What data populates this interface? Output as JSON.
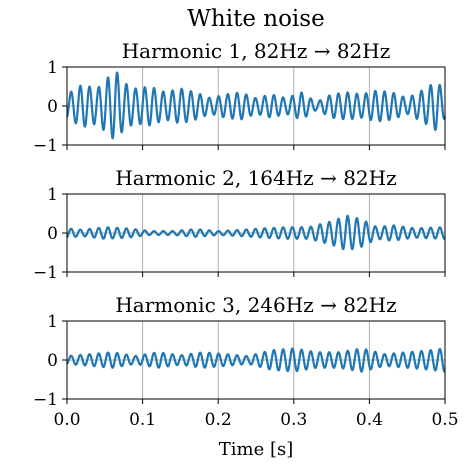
{
  "chart_data": {
    "type": "line",
    "title": "White noise",
    "xlabel": "Time [s]",
    "xlim": [
      0.0,
      0.5
    ],
    "xticks": [
      "0.0",
      "0.1",
      "0.2",
      "0.3",
      "0.4",
      "0.5"
    ],
    "grid": true,
    "line_color": "#1f77b4",
    "panels": [
      {
        "title": "Harmonic 1, 82Hz → 82Hz",
        "ylim": [
          -1,
          1
        ],
        "yticks": [
          "−1",
          "0",
          "1"
        ],
        "frequency_hz": 82,
        "envelope": {
          "t": [
            0.0,
            0.02,
            0.04,
            0.055,
            0.065,
            0.075,
            0.09,
            0.11,
            0.13,
            0.15,
            0.17,
            0.19,
            0.21,
            0.23,
            0.25,
            0.27,
            0.29,
            0.31,
            0.33,
            0.35,
            0.37,
            0.39,
            0.41,
            0.43,
            0.45,
            0.47,
            0.49,
            0.5
          ],
          "amp": [
            0.3,
            0.55,
            0.45,
            0.75,
            0.9,
            0.6,
            0.45,
            0.5,
            0.35,
            0.45,
            0.35,
            0.2,
            0.3,
            0.35,
            0.2,
            0.3,
            0.2,
            0.35,
            0.1,
            0.3,
            0.35,
            0.3,
            0.4,
            0.35,
            0.2,
            0.4,
            0.65,
            0.3
          ]
        }
      },
      {
        "title": "Harmonic 2, 164Hz → 82Hz",
        "ylim": [
          -1,
          1
        ],
        "yticks": [
          "−1",
          "0",
          "1"
        ],
        "frequency_hz": 82,
        "envelope": {
          "t": [
            0.0,
            0.02,
            0.05,
            0.08,
            0.11,
            0.14,
            0.17,
            0.2,
            0.23,
            0.26,
            0.29,
            0.32,
            0.35,
            0.37,
            0.39,
            0.41,
            0.43,
            0.46,
            0.5
          ],
          "amp": [
            0.12,
            0.08,
            0.15,
            0.12,
            0.05,
            0.05,
            0.1,
            0.05,
            0.08,
            0.12,
            0.15,
            0.15,
            0.3,
            0.45,
            0.35,
            0.15,
            0.2,
            0.12,
            0.15
          ]
        }
      },
      {
        "title": "Harmonic 3, 246Hz → 82Hz",
        "ylim": [
          -1,
          1
        ],
        "yticks": [
          "−1",
          "0",
          "1"
        ],
        "frequency_hz": 82,
        "envelope": {
          "t": [
            0.0,
            0.03,
            0.06,
            0.09,
            0.12,
            0.15,
            0.18,
            0.21,
            0.24,
            0.27,
            0.3,
            0.33,
            0.36,
            0.39,
            0.42,
            0.45,
            0.48,
            0.5
          ],
          "amp": [
            0.1,
            0.15,
            0.2,
            0.1,
            0.2,
            0.12,
            0.2,
            0.15,
            0.1,
            0.25,
            0.3,
            0.2,
            0.2,
            0.3,
            0.15,
            0.2,
            0.25,
            0.3
          ]
        }
      }
    ]
  }
}
